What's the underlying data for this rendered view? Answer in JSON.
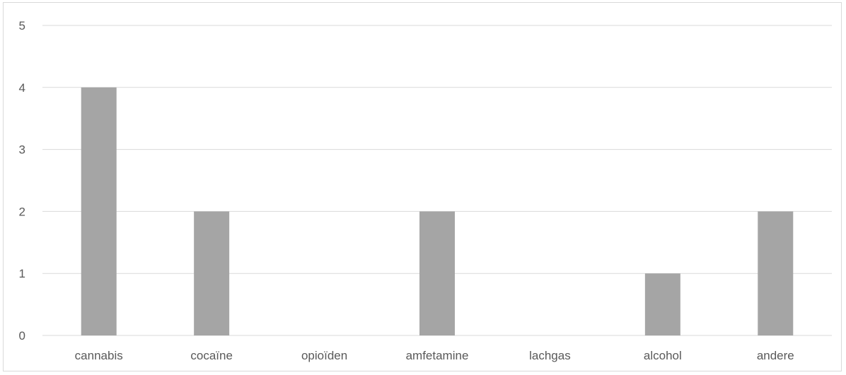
{
  "chart_data": {
    "type": "bar",
    "categories": [
      "cannabis",
      "cocaïne",
      "opioïden",
      "amfetamine",
      "lachgas",
      "alcohol",
      "andere"
    ],
    "values": [
      4,
      2,
      0,
      2,
      0,
      1,
      2
    ],
    "ylim": [
      0,
      5
    ],
    "yticks": [
      0,
      1,
      2,
      3,
      4,
      5
    ],
    "grid": true,
    "colors": {
      "bar": "#a5a5a5",
      "grid": "#d9d9d9",
      "text": "#595959"
    }
  }
}
